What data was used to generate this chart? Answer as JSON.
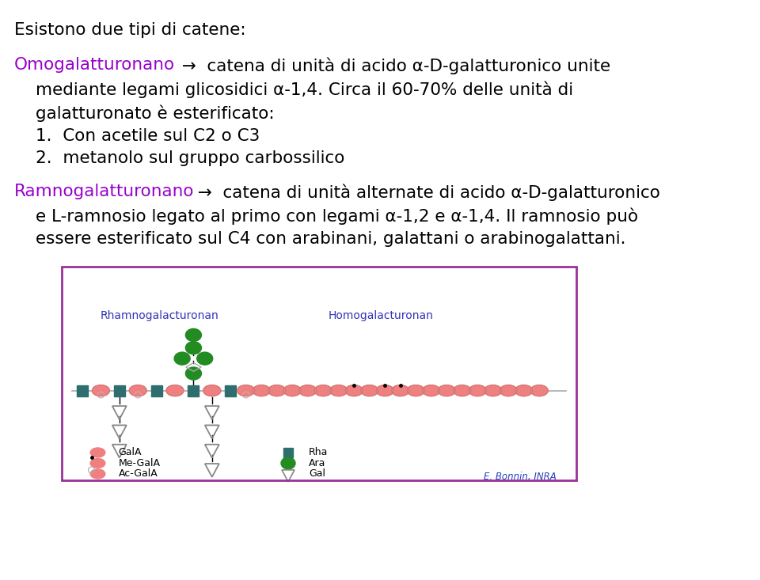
{
  "bg_color": "#FFFFFF",
  "border_color": "#993399",
  "color_omoga": "#9900CC",
  "color_ramno": "#9900CC",
  "color_diagram_label": "#3333BB",
  "color_gala": "#F08080",
  "color_rha": "#2F6E6E",
  "color_ara": "#228B22",
  "credit": "E. Bonnin, INRA",
  "diagram_label_rhamno": "Rhamnogalacturonan",
  "diagram_label_homo": "Homogalacturonan",
  "title": "Esistono due tipi di catene:",
  "omoga_word": "Omogalatturonano",
  "omoga_rest1": "  →  catena di unità di acido α-D-galatturonico unite",
  "omoga_rest2": "mediante legami glicosidici α-1,4. Circa il 60-70% delle unità di",
  "omoga_rest3": "galatturonato è esterificato:",
  "item1": "1.  Con acetile sul C2 o C3",
  "item2": "2.  metanolo sul gruppo carbossilico",
  "ramno_word": "Ramnogalatturonano",
  "ramno_rest1": "  →  catena di unità alternate di acido α-D-galatturonico",
  "ramno_rest2": "e L-ramnosio legato al primo con legami α-1,2 e α-1,4. Il ramnosio può",
  "ramno_rest3": "essere esterificato sul C4 con arabinani, galattani o arabinogalattani."
}
